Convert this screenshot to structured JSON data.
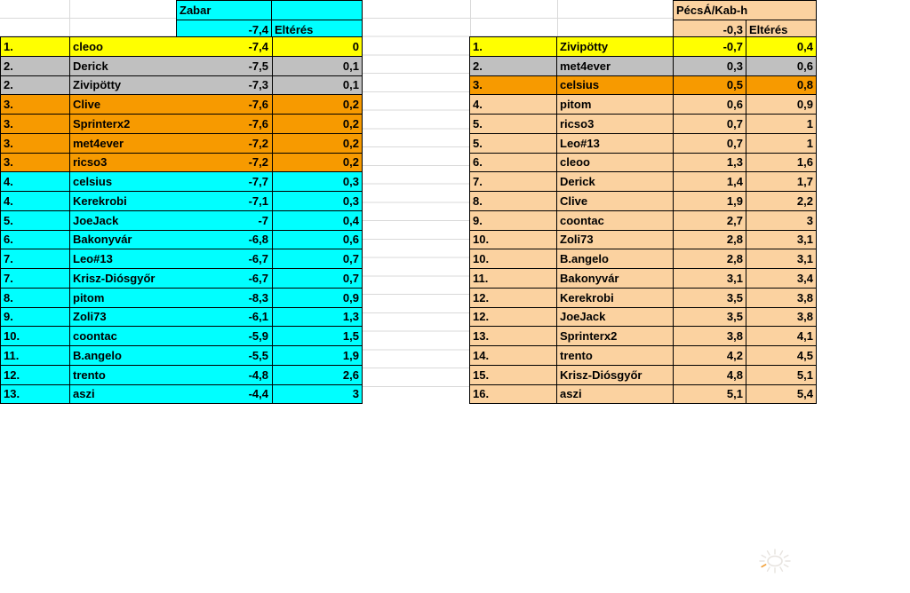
{
  "colors": {
    "yellow": "#ffff00",
    "gray": "#c0c0c0",
    "orange": "#f79a00",
    "cyan": "#00ffff",
    "peach": "#fbd2a0",
    "grid": "#d9d9d9",
    "border": "#000000"
  },
  "left_table": {
    "title": "Zabar",
    "base_value": "-7,4",
    "diff_label": "Eltérés",
    "rows": [
      {
        "rank": "1.",
        "name": "cleoo",
        "value": "-7,4",
        "diff": "0",
        "color": "yellow"
      },
      {
        "rank": "2.",
        "name": "Derick",
        "value": "-7,5",
        "diff": "0,1",
        "color": "gray"
      },
      {
        "rank": "2.",
        "name": "Zivipötty",
        "value": "-7,3",
        "diff": "0,1",
        "color": "gray"
      },
      {
        "rank": "3.",
        "name": "Clive",
        "value": "-7,6",
        "diff": "0,2",
        "color": "orange"
      },
      {
        "rank": "3.",
        "name": "Sprinterx2",
        "value": "-7,6",
        "diff": "0,2",
        "color": "orange"
      },
      {
        "rank": "3.",
        "name": "met4ever",
        "value": "-7,2",
        "diff": "0,2",
        "color": "orange"
      },
      {
        "rank": "3.",
        "name": "ricso3",
        "value": "-7,2",
        "diff": "0,2",
        "color": "orange"
      },
      {
        "rank": "4.",
        "name": "celsius",
        "value": "-7,7",
        "diff": "0,3",
        "color": "cyan"
      },
      {
        "rank": "4.",
        "name": "Kerekrobi",
        "value": "-7,1",
        "diff": "0,3",
        "color": "cyan"
      },
      {
        "rank": "5.",
        "name": "JoeJack",
        "value": "-7",
        "diff": "0,4",
        "color": "cyan"
      },
      {
        "rank": "6.",
        "name": "Bakonyvár",
        "value": "-6,8",
        "diff": "0,6",
        "color": "cyan"
      },
      {
        "rank": "7.",
        "name": "Leo#13",
        "value": "-6,7",
        "diff": "0,7",
        "color": "cyan"
      },
      {
        "rank": "7.",
        "name": "Krisz-Diósgyőr",
        "value": "-6,7",
        "diff": "0,7",
        "color": "cyan"
      },
      {
        "rank": "8.",
        "name": "pitom",
        "value": "-8,3",
        "diff": "0,9",
        "color": "cyan"
      },
      {
        "rank": "9.",
        "name": "Zoli73",
        "value": "-6,1",
        "diff": "1,3",
        "color": "cyan"
      },
      {
        "rank": "10.",
        "name": "coontac",
        "value": "-5,9",
        "diff": "1,5",
        "color": "cyan"
      },
      {
        "rank": "11.",
        "name": "B.angelo",
        "value": "-5,5",
        "diff": "1,9",
        "color": "cyan"
      },
      {
        "rank": "12.",
        "name": "trento",
        "value": "-4,8",
        "diff": "2,6",
        "color": "cyan"
      },
      {
        "rank": "13.",
        "name": "aszi",
        "value": "-4,4",
        "diff": "3",
        "color": "cyan"
      }
    ]
  },
  "right_table": {
    "title": "PécsÁ/Kab-h",
    "base_value": "-0,3",
    "diff_label": "Eltérés",
    "rows": [
      {
        "rank": "1.",
        "name": "Zivipötty",
        "value": "-0,7",
        "diff": "0,4",
        "color": "yellow"
      },
      {
        "rank": "2.",
        "name": "met4ever",
        "value": "0,3",
        "diff": "0,6",
        "color": "gray"
      },
      {
        "rank": "3.",
        "name": "celsius",
        "value": "0,5",
        "diff": "0,8",
        "color": "orange"
      },
      {
        "rank": "4.",
        "name": "pitom",
        "value": "0,6",
        "diff": "0,9",
        "color": "peach"
      },
      {
        "rank": "5.",
        "name": "ricso3",
        "value": "0,7",
        "diff": "1",
        "color": "peach"
      },
      {
        "rank": "5.",
        "name": "Leo#13",
        "value": "0,7",
        "diff": "1",
        "color": "peach"
      },
      {
        "rank": "6.",
        "name": "cleoo",
        "value": "1,3",
        "diff": "1,6",
        "color": "peach"
      },
      {
        "rank": "7.",
        "name": "Derick",
        "value": "1,4",
        "diff": "1,7",
        "color": "peach"
      },
      {
        "rank": "8.",
        "name": "Clive",
        "value": "1,9",
        "diff": "2,2",
        "color": "peach"
      },
      {
        "rank": "9.",
        "name": "coontac",
        "value": "2,7",
        "diff": "3",
        "color": "peach"
      },
      {
        "rank": "10.",
        "name": "Zoli73",
        "value": "2,8",
        "diff": "3,1",
        "color": "peach"
      },
      {
        "rank": "10.",
        "name": "B.angelo",
        "value": "2,8",
        "diff": "3,1",
        "color": "peach"
      },
      {
        "rank": "11.",
        "name": "Bakonyvár",
        "value": "3,1",
        "diff": "3,4",
        "color": "peach"
      },
      {
        "rank": "12.",
        "name": "Kerekrobi",
        "value": "3,5",
        "diff": "3,8",
        "color": "peach"
      },
      {
        "rank": "12.",
        "name": "JoeJack",
        "value": "3,5",
        "diff": "3,8",
        "color": "peach"
      },
      {
        "rank": "13.",
        "name": "Sprinterx2",
        "value": "3,8",
        "diff": "4,1",
        "color": "peach"
      },
      {
        "rank": "14.",
        "name": "trento",
        "value": "4,2",
        "diff": "4,5",
        "color": "peach"
      },
      {
        "rank": "15.",
        "name": "Krisz-Diósgyőr",
        "value": "4,8",
        "diff": "5,1",
        "color": "peach"
      },
      {
        "rank": "16.",
        "name": "aszi",
        "value": "5,1",
        "diff": "5,4",
        "color": "peach"
      }
    ]
  },
  "watermark": {
    "icon": "sun-icon"
  }
}
